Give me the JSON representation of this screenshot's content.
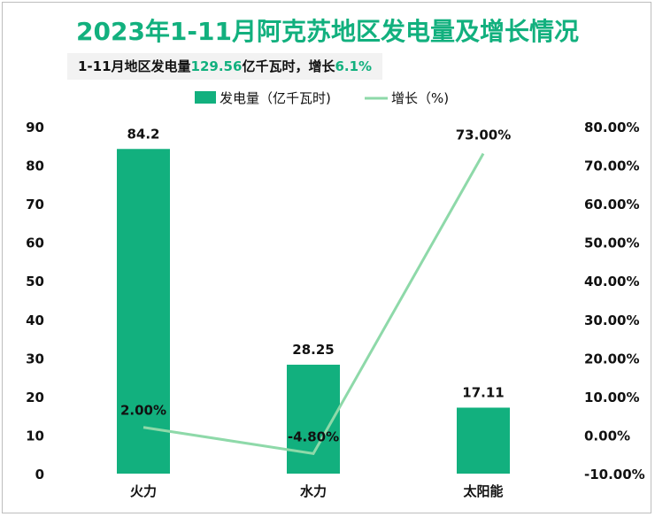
{
  "title": "2023年1-11月阿克苏地区发电量及增长情况",
  "subtitle": {
    "prefix": "1-11月地区发电量",
    "total": "129.56",
    "mid": "亿千瓦时，增长",
    "growth": "6.1%"
  },
  "colors": {
    "bar": "#12b07e",
    "line": "#8ed9a9",
    "accent": "#12b07e"
  },
  "chart_data": {
    "type": "bar+line",
    "categories": [
      "火力",
      "水力",
      "太阳能"
    ],
    "series": [
      {
        "name": "发电量（亿千瓦时)",
        "type": "bar",
        "axis": "left",
        "values": [
          84.2,
          28.25,
          17.11
        ],
        "labels": [
          "84.2",
          "28.25",
          "17.11"
        ]
      },
      {
        "name": "增长（%)",
        "type": "line",
        "axis": "right",
        "values": [
          2.0,
          -4.8,
          73.0
        ],
        "labels": [
          "2.00%",
          "-4.80%",
          "73.00%"
        ]
      }
    ],
    "left_axis": {
      "range": [
        0,
        90
      ],
      "ticks": [
        "0",
        "10",
        "20",
        "30",
        "40",
        "50",
        "60",
        "70",
        "80",
        "90"
      ]
    },
    "right_axis": {
      "range": [
        -10,
        80
      ],
      "ticks": [
        "-10.00%",
        "0.00%",
        "10.00%",
        "20.00%",
        "30.00%",
        "40.00%",
        "50.00%",
        "60.00%",
        "70.00%",
        "80.00%"
      ]
    },
    "grid": false,
    "legend": "top"
  }
}
